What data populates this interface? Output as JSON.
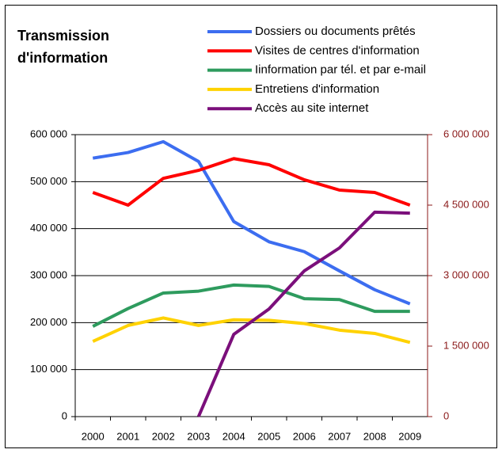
{
  "chart_data": {
    "type": "line",
    "title": [
      "Transmission",
      "d'information"
    ],
    "categories": [
      "2000",
      "2001",
      "2002",
      "2003",
      "2004",
      "2005",
      "2006",
      "2007",
      "2008",
      "2009"
    ],
    "series": [
      {
        "name": "Dossiers ou documents prêtés",
        "color": "#3c6df0",
        "values": [
          550000,
          562000,
          585000,
          543000,
          415000,
          372000,
          351000,
          310000,
          270000,
          240000
        ]
      },
      {
        "name": "Visites de centres d'information",
        "color": "#ff0000",
        "values": [
          477000,
          450000,
          507000,
          524000,
          549000,
          536000,
          504000,
          482000,
          477000,
          450000
        ]
      },
      {
        "name": "Iinformation par tél. et par e-mail",
        "color": "#2e9b5e",
        "values": [
          192000,
          230000,
          263000,
          267000,
          280000,
          277000,
          251000,
          249000,
          224000,
          224000
        ]
      },
      {
        "name": "Entretiens d'information",
        "color": "#ffd200",
        "values": [
          160000,
          194000,
          210000,
          194000,
          206000,
          205000,
          198000,
          184000,
          177000,
          158000
        ]
      },
      {
        "name": "Accès au site internet",
        "color": "#7b0f7b",
        "axis": "y2",
        "values": [
          null,
          null,
          null,
          0,
          1750000,
          2290000,
          3100000,
          3590000,
          4350000,
          4330000
        ]
      }
    ],
    "ylim": [
      0,
      600000
    ],
    "yticks": [
      0,
      {
        "value": 100000,
        "label": "100 000"
      },
      {
        "value": 200000,
        "label": "200 000"
      },
      {
        "value": 300000,
        "label": "300 000"
      },
      {
        "value": 400000,
        "label": "400 000"
      },
      {
        "value": 500000,
        "label": "500 000"
      },
      {
        "value": 600000,
        "label": "600 000"
      }
    ],
    "y2lim": [
      0,
      6000000
    ],
    "y2ticks": [
      0,
      {
        "value": 1500000,
        "label": "1 500 000"
      },
      {
        "value": 3000000,
        "label": "3 000 000"
      },
      {
        "value": 4500000,
        "label": "4 500 000"
      },
      {
        "value": 6000000,
        "label": "6 000 000"
      }
    ],
    "y2color": "#8b1a1a",
    "grid": true
  }
}
